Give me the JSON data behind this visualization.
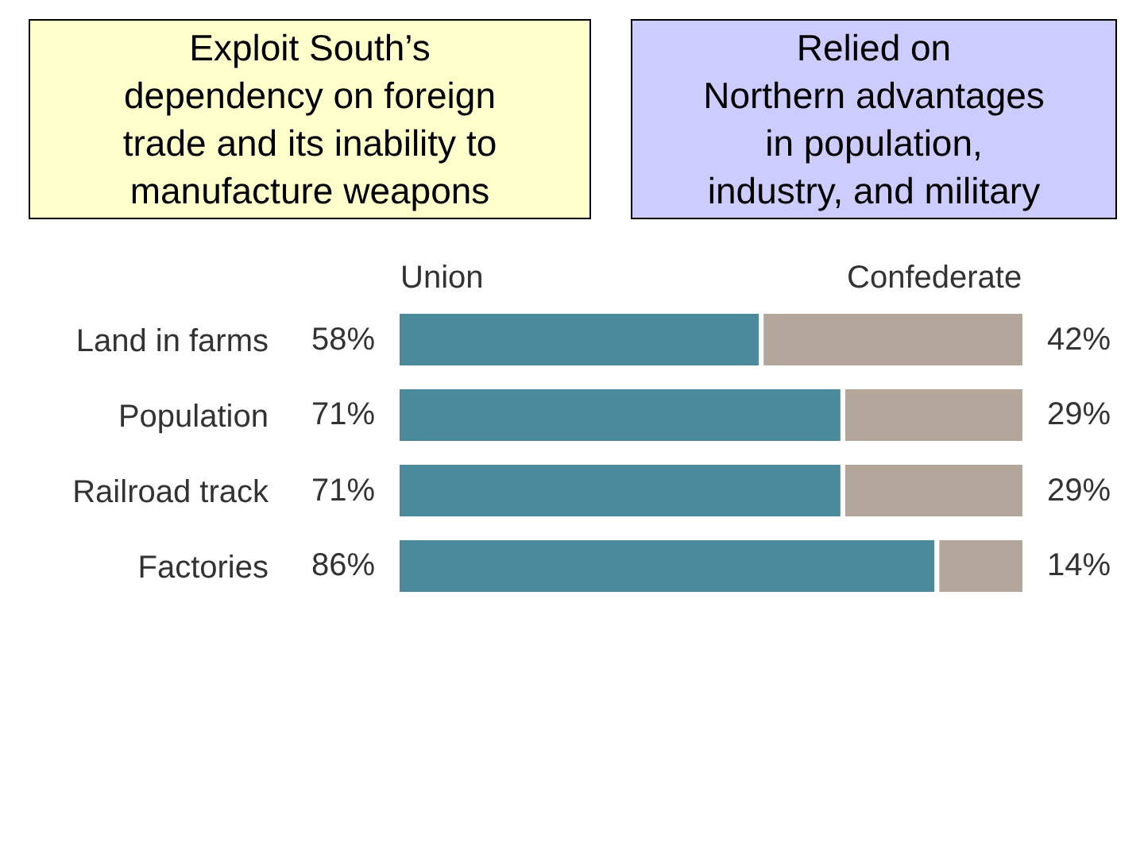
{
  "chart_data": {
    "type": "bar",
    "orientation": "horizontal",
    "stacked": true,
    "categories": [
      "Land in farms",
      "Population",
      "Railroad track",
      "Factories"
    ],
    "series": [
      {
        "name": "Union",
        "color": "#4b8a9b",
        "values": [
          58,
          71,
          71,
          86
        ],
        "value_labels": [
          "58%",
          "71%",
          "71%",
          "86%"
        ]
      },
      {
        "name": "Confederate",
        "color": "#b3a69b",
        "values": [
          42,
          29,
          29,
          14
        ],
        "value_labels": [
          "42%",
          "29%",
          "29%",
          "14%"
        ]
      }
    ],
    "annotations": [
      "Exploit South’s\ndependency on foreign\ntrade and its inability to\nmanufacture weapons",
      "Relied on\nNorthern advantages\nin population,\nindustry, and military"
    ],
    "legend": false,
    "tick_labels": "y"
  }
}
